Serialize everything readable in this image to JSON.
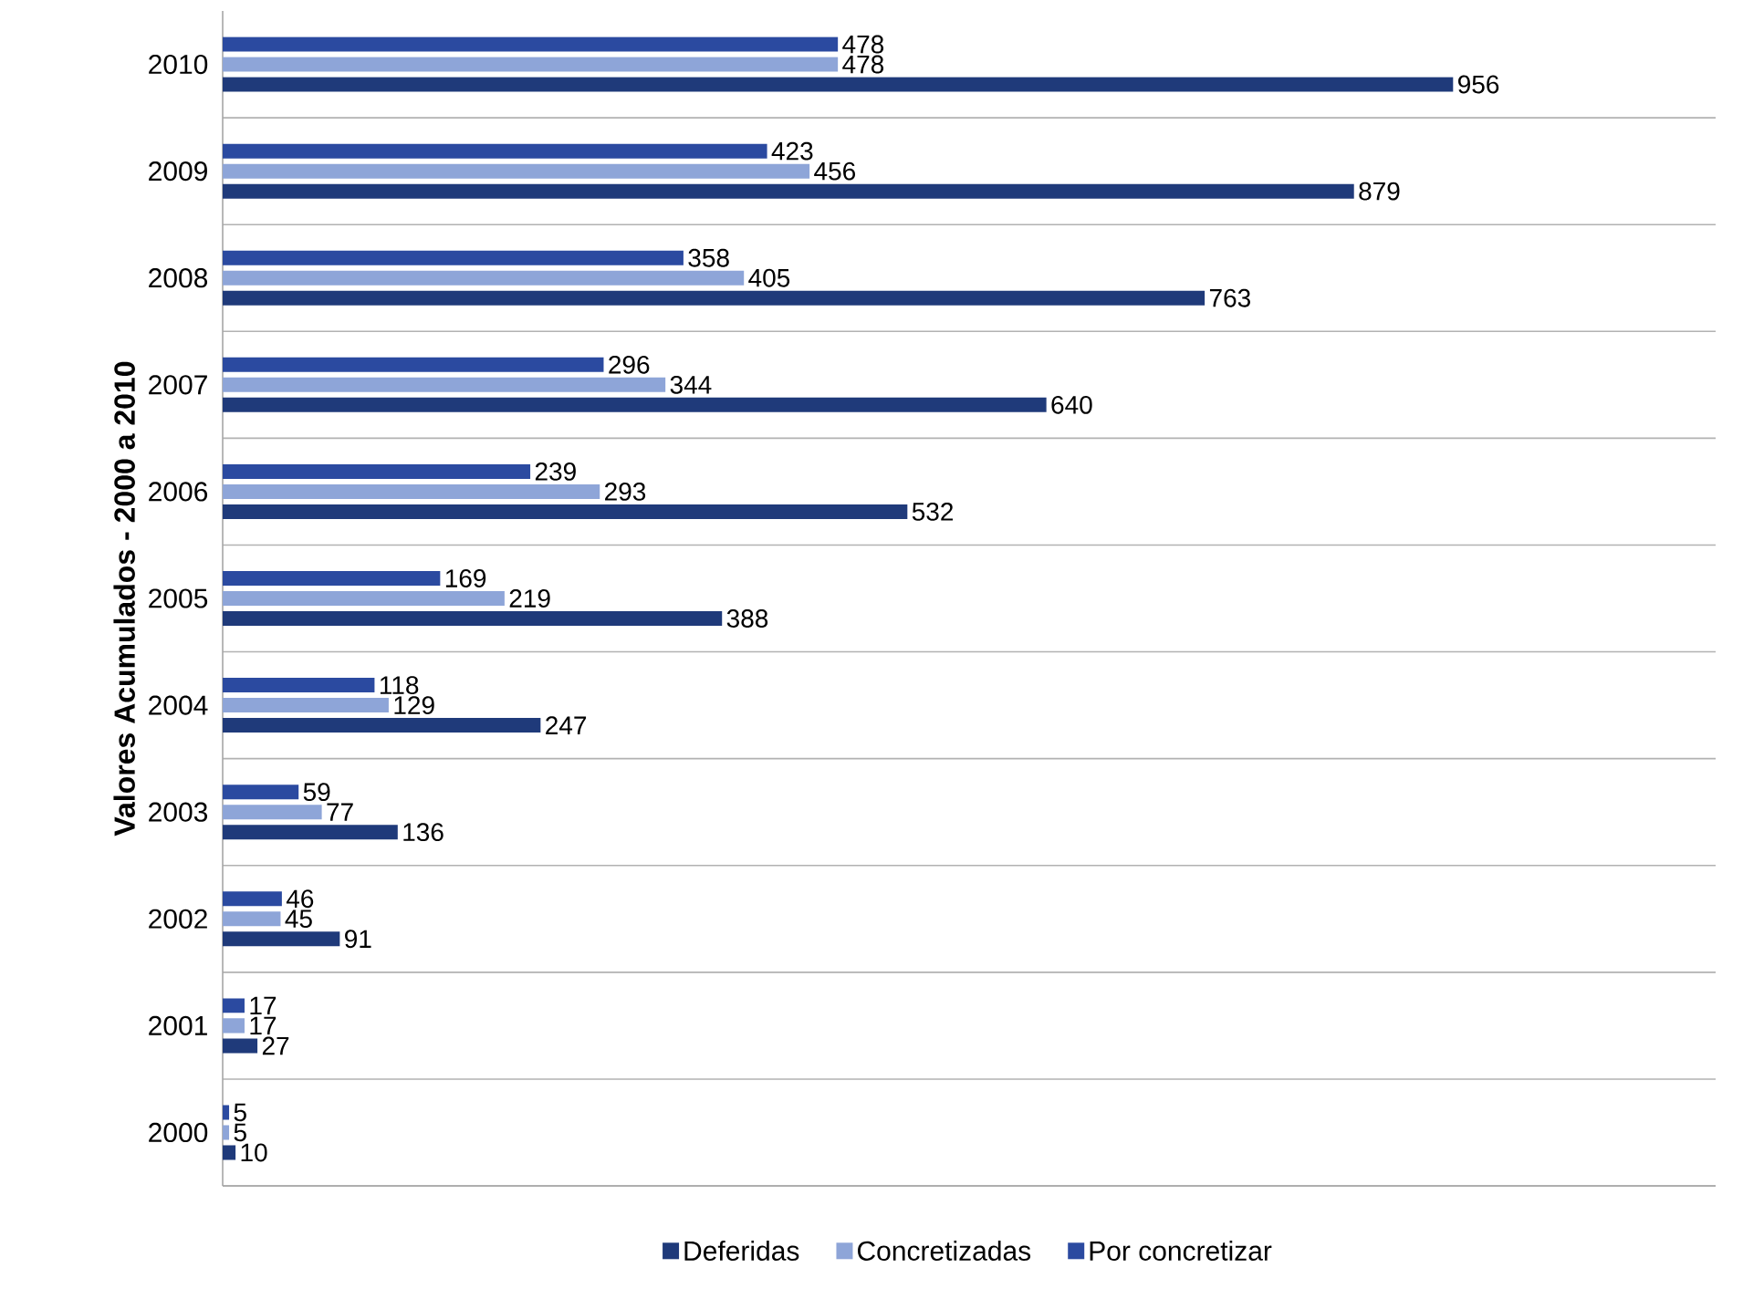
{
  "chart_data": {
    "type": "bar",
    "orientation": "horizontal",
    "ylabel": "Valores Acumulados - 2000 a 2010",
    "categories": [
      "2010",
      "2009",
      "2008",
      "2007",
      "2006",
      "2005",
      "2004",
      "2003",
      "2002",
      "2001",
      "2000"
    ],
    "series": [
      {
        "name": "Deferidas",
        "color": "#1f3a7a",
        "values": [
          956,
          879,
          763,
          640,
          532,
          388,
          247,
          136,
          91,
          27,
          10
        ]
      },
      {
        "name": "Concretizadas",
        "color": "#8ea5d8",
        "values": [
          478,
          456,
          405,
          344,
          293,
          219,
          129,
          77,
          45,
          17,
          5
        ]
      },
      {
        "name": "Por concretizar",
        "color": "#2b4aa0",
        "values": [
          478,
          423,
          358,
          296,
          239,
          169,
          118,
          59,
          46,
          17,
          5
        ]
      }
    ],
    "xlim": [
      0,
      1160
    ],
    "data_labels": true,
    "grid": "y",
    "legend": "bottom",
    "tick_labels": "y"
  }
}
